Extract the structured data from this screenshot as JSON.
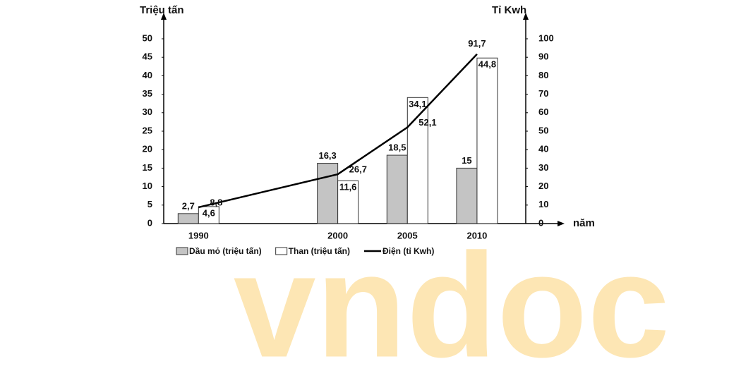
{
  "watermark": "vndoc",
  "chart_data": {
    "type": "bar-line",
    "x_label": "năm",
    "y_label": "Triệu tấn",
    "y2_label": "Tỉ Kwh",
    "x": [
      1990,
      2000,
      2005,
      2010
    ],
    "xlim": [
      1987.5,
      2013.5
    ],
    "xticks": [
      1990,
      2000,
      2005,
      2010
    ],
    "ylim": [
      0,
      50
    ],
    "yticks": [
      0,
      5,
      10,
      15,
      20,
      25,
      30,
      35,
      40,
      45,
      50
    ],
    "y2lim": [
      0,
      100
    ],
    "y2ticks": [
      0,
      10,
      20,
      30,
      40,
      50,
      60,
      70,
      80,
      90,
      100
    ],
    "series": [
      {
        "name": "Dầu mỏ (triệu tấn)",
        "color": "#c4c4c4",
        "kind": "bar",
        "values": [
          2.7,
          16.3,
          18.5,
          15
        ],
        "value_labels": [
          "2,7",
          "16,3",
          "18,5",
          "15"
        ]
      },
      {
        "name": "Than (triệu tấn)",
        "color": "#ffffff",
        "kind": "bar",
        "values": [
          4.6,
          11.6,
          34.1,
          44.8
        ],
        "value_labels": [
          "4,6",
          "11,6",
          "34,1",
          "44,8"
        ]
      },
      {
        "name": "Điện (tỉ Kwh)",
        "color": "#000000",
        "kind": "line",
        "axis": "y2",
        "values": [
          8.8,
          26.7,
          52.1,
          91.7
        ],
        "value_labels": [
          "8,8",
          "26,7",
          "52,1",
          "91,7"
        ]
      }
    ]
  }
}
